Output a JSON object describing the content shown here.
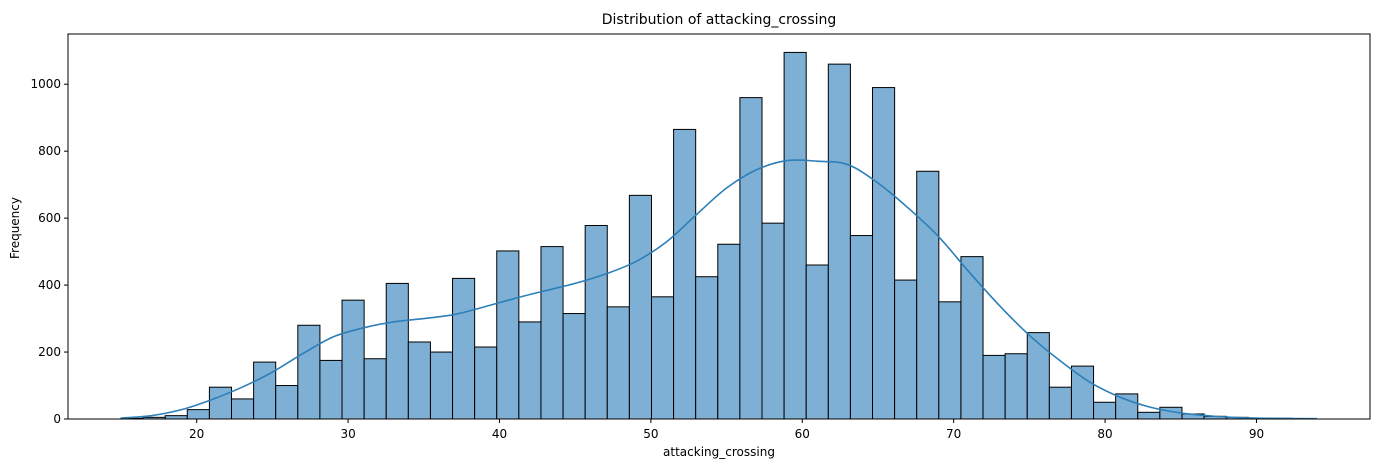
{
  "chart_data": {
    "type": "bar",
    "title": "Distribution of attacking_crossing",
    "xlabel": "attacking_crossing",
    "ylabel": "Frequency",
    "xlim": [
      11.5,
      97.5
    ],
    "ylim": [
      0,
      1150
    ],
    "xticks": [
      20,
      30,
      40,
      50,
      60,
      70,
      80,
      90
    ],
    "yticks": [
      0,
      200,
      400,
      600,
      800,
      1000
    ],
    "bin_width": 1.46,
    "bin_start": 15,
    "values": [
      2,
      5,
      10,
      28,
      95,
      60,
      170,
      100,
      280,
      175,
      355,
      180,
      405,
      230,
      200,
      420,
      215,
      502,
      290,
      515,
      315,
      578,
      335,
      668,
      365,
      865,
      425,
      522,
      960,
      585,
      1095,
      460,
      1060,
      548,
      990,
      415,
      740,
      350,
      485,
      190,
      195,
      258,
      95,
      158,
      50,
      75,
      20,
      35,
      15,
      8,
      5,
      3,
      2,
      1
    ],
    "kde": {
      "x": [
        15,
        17,
        19,
        21,
        23,
        25,
        27,
        29,
        31,
        33,
        35,
        37,
        39,
        41,
        43,
        45,
        47,
        49,
        51,
        53,
        55,
        57,
        59,
        61,
        63,
        65,
        67,
        69,
        71,
        73,
        75,
        77,
        79,
        81,
        83,
        85,
        87,
        89,
        91,
        94
      ],
      "y": [
        3,
        10,
        28,
        58,
        95,
        140,
        195,
        245,
        272,
        290,
        300,
        312,
        335,
        360,
        383,
        405,
        433,
        470,
        528,
        610,
        690,
        745,
        772,
        770,
        760,
        705,
        630,
        545,
        440,
        340,
        250,
        175,
        110,
        65,
        35,
        18,
        9,
        4,
        2,
        1
      ]
    },
    "grid": false,
    "bar_color": "#7eb0d5",
    "line_color": "#2c7fb8"
  }
}
